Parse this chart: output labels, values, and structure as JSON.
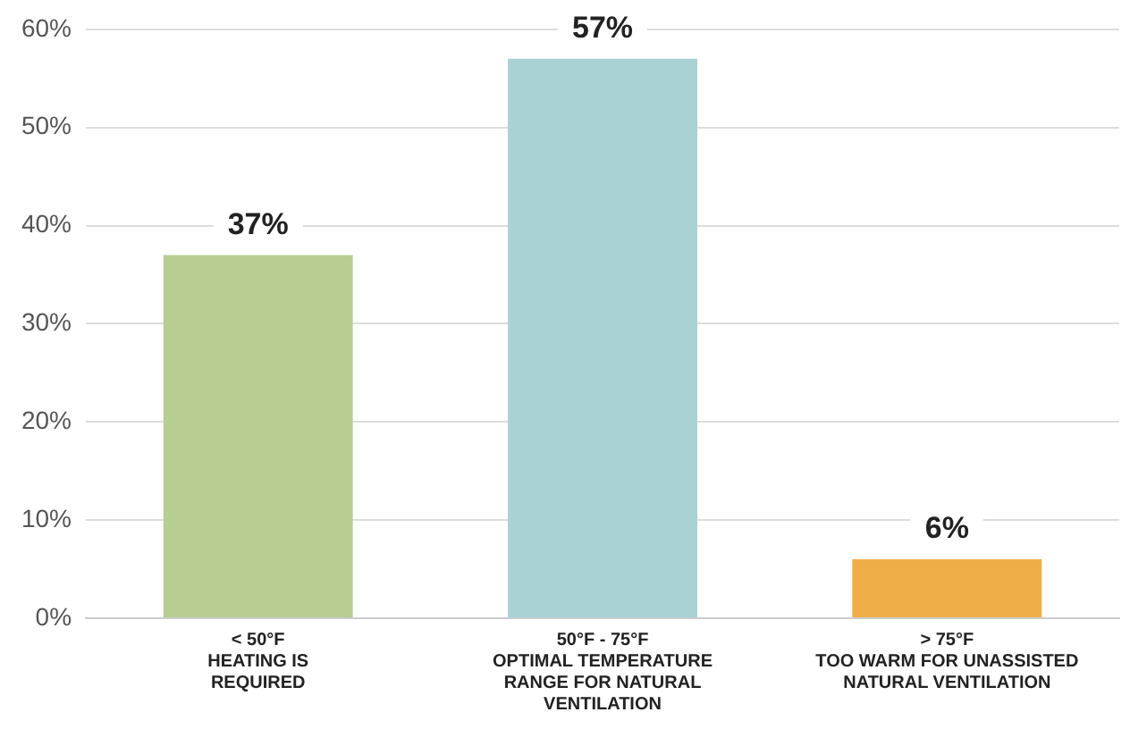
{
  "chart_data": {
    "type": "bar",
    "categories": [
      "< 50°F\nHEATING IS\nREQUIRED",
      "50°F - 75°F\nOPTIMAL TEMPERATURE\nRANGE FOR NATURAL\nVENTILATION",
      "> 75°F\nTOO WARM FOR UNASSISTED\nNATURAL VENTILATION"
    ],
    "values": [
      37,
      57,
      6
    ],
    "colors": [
      "#b7cd92",
      "#a9d2d4",
      "#f0ae48"
    ],
    "value_labels": [
      "37%",
      "57%",
      "6%"
    ],
    "ylim": [
      0,
      60
    ],
    "yticks": [
      {
        "value": 0,
        "label": "0%"
      },
      {
        "value": 10,
        "label": "10%"
      },
      {
        "value": 20,
        "label": "20%"
      },
      {
        "value": 30,
        "label": "30%"
      },
      {
        "value": 40,
        "label": "40%"
      },
      {
        "value": 50,
        "label": "50%"
      },
      {
        "value": 60,
        "label": "60%"
      }
    ],
    "grid": "y",
    "legend": false
  }
}
